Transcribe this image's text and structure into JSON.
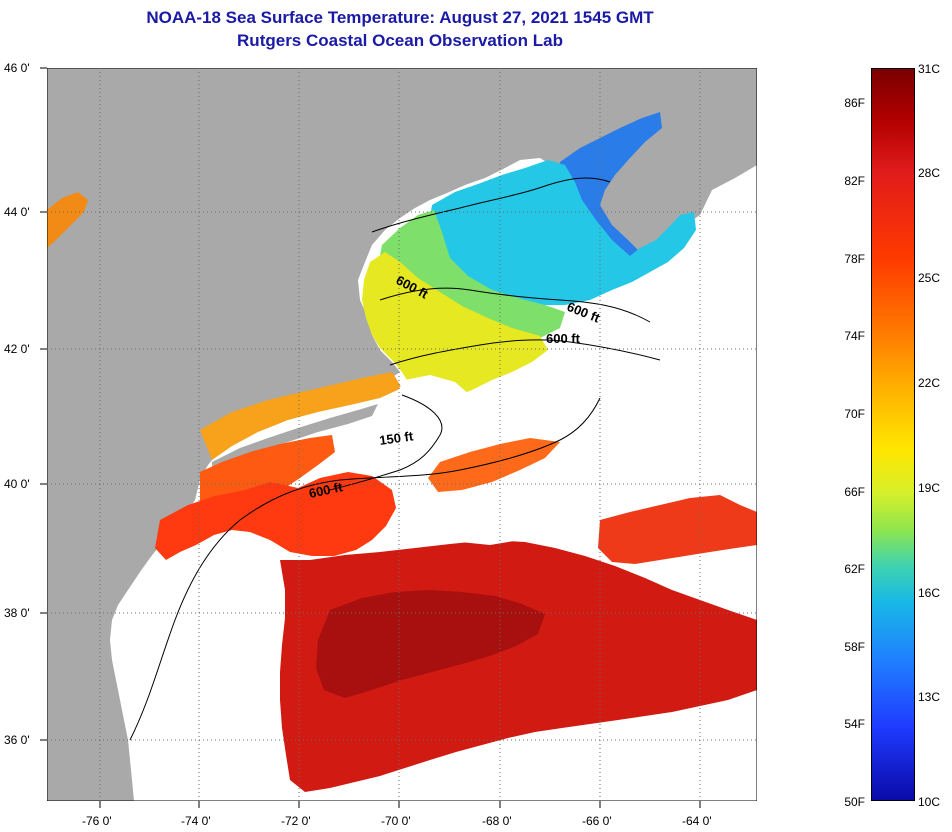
{
  "title": {
    "line1": "NOAA-18 Sea Surface Temperature:  August 27, 2021 1545 GMT",
    "line2": "Rutgers Coastal Ocean Observation Lab"
  },
  "axes": {
    "lat_labels": [
      "46 0'",
      "44 0'",
      "42 0'",
      "40 0'",
      "38 0'",
      "36 0'"
    ],
    "lon_labels": [
      "-76 0'",
      "-74 0'",
      "-72 0'",
      "-70 0'",
      "-68 0'",
      "-66 0'",
      "-64 0'"
    ]
  },
  "contours": {
    "labels": [
      "600 ft",
      "600 ft",
      "600 ft",
      "150 ft",
      "600 ft"
    ]
  },
  "colorbar": {
    "f_labels": [
      "86F",
      "82F",
      "78F",
      "74F",
      "70F",
      "66F",
      "62F",
      "58F",
      "54F",
      "50F"
    ],
    "c_labels": [
      "31C",
      "28C",
      "25C",
      "22C",
      "19C",
      "16C",
      "13C",
      "10C"
    ]
  },
  "colors": {
    "land": "#a9a9a9",
    "no_data": "#ffffff",
    "title": "#1a1aa6"
  }
}
